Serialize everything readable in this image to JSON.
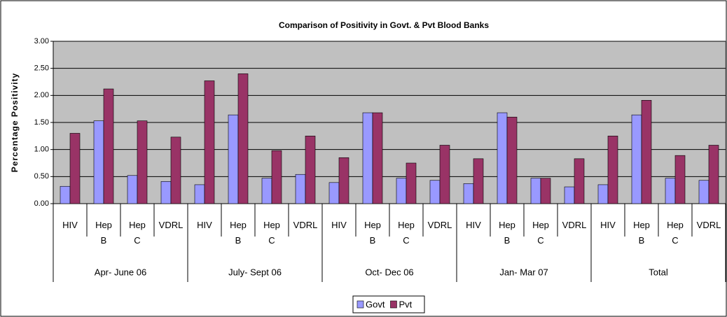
{
  "chart_data": {
    "type": "bar",
    "title": "Comparison of Positivity in Govt. & Pvt Blood Banks",
    "y_label": "Percentage Positivity",
    "categories": [
      "HIV",
      "Hep B",
      "Hep C",
      "VDRL",
      "HIV",
      "Hep B",
      "Hep C",
      "VDRL",
      "HIV",
      "Hep B",
      "Hep C",
      "VDRL",
      "HIV",
      "Hep B",
      "Hep C",
      "VDRL",
      "HIV",
      "Hep B",
      "Hep C",
      "VDRL"
    ],
    "category_groups": [
      "Apr- June 06",
      "July- Sept 06",
      "Oct- Dec 06",
      "Jan- Mar 07",
      "Total"
    ],
    "series": [
      {
        "name": "Govt",
        "color": "#9999ff",
        "values": [
          0.32,
          1.53,
          0.52,
          0.41,
          0.35,
          1.64,
          0.47,
          0.54,
          0.39,
          1.68,
          0.47,
          0.43,
          0.37,
          1.68,
          0.47,
          0.31,
          0.35,
          1.64,
          0.47,
          0.43
        ]
      },
      {
        "name": "Pvt",
        "color": "#993366",
        "values": [
          1.3,
          2.12,
          1.53,
          1.23,
          2.27,
          2.4,
          0.98,
          1.25,
          0.85,
          1.68,
          0.75,
          1.08,
          0.83,
          1.6,
          0.47,
          0.83,
          1.25,
          1.91,
          0.89,
          1.08
        ]
      }
    ],
    "ylim": [
      0,
      3
    ],
    "yticks": [
      {
        "value": 0,
        "label": "0.00"
      },
      {
        "value": 0.5,
        "label": "0.50"
      },
      {
        "value": 1,
        "label": "1.00"
      },
      {
        "value": 1.5,
        "label": "1.50"
      },
      {
        "value": 2,
        "label": "2.00"
      },
      {
        "value": 2.5,
        "label": "2.50"
      },
      {
        "value": 3,
        "label": "3.00"
      }
    ],
    "grid": true,
    "plot_background": "#c0c0c0",
    "legend_position": "bottom"
  }
}
